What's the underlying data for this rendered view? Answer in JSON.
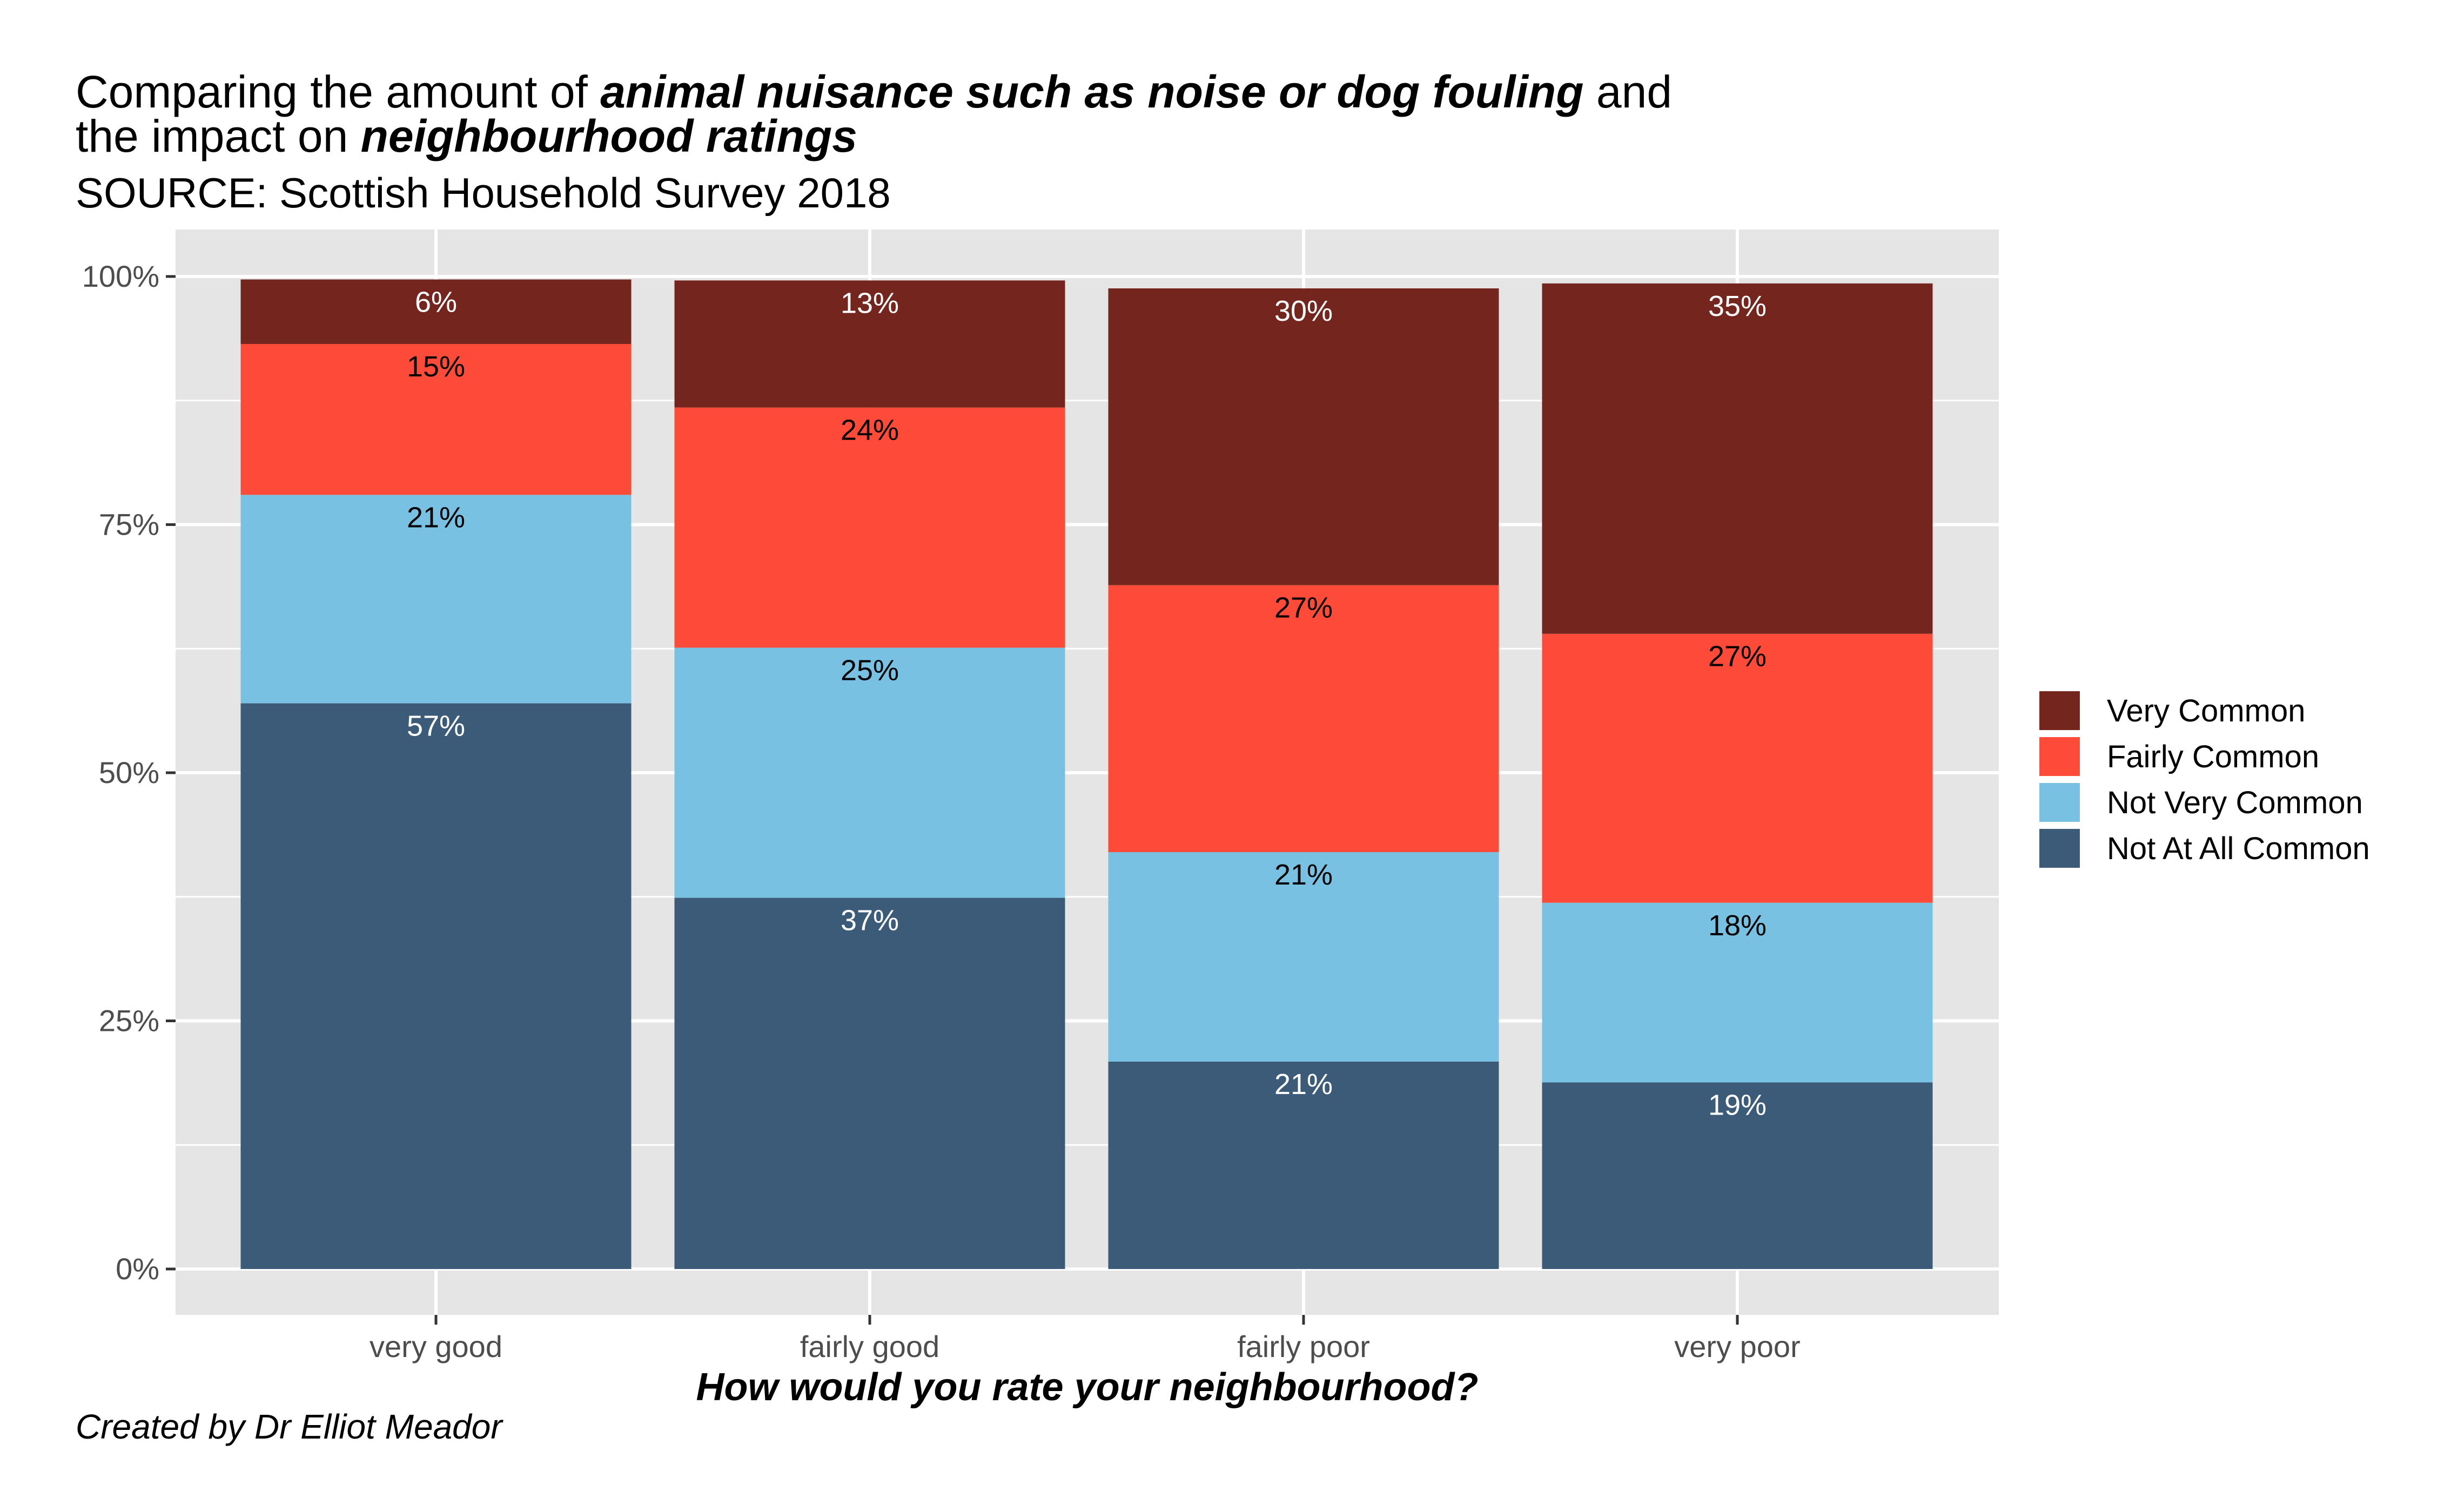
{
  "title_parts": {
    "line1_prefix": "Comparing the amount of ",
    "line1_emphasis": "animal nuisance such as noise or dog fouling",
    "line1_suffix": " and",
    "line2_prefix": "the impact on ",
    "line2_emphasis": "neighbourhood ratings"
  },
  "subtitle": "SOURCE: Scottish Household Survey 2018",
  "caption": "Created by Dr Elliot Meador",
  "colors": {
    "panel_background": "#e5e5e5",
    "grid": "#ffffff",
    "Very Common": "#74261e",
    "Fairly Common": "#fe4b39",
    "Not Very Common": "#78c1e3",
    "Not At All Common": "#3c5b78"
  },
  "chart_data": {
    "type": "bar",
    "stacked": true,
    "categories": [
      "very good",
      "fairly good",
      "fairly poor",
      "very poor"
    ],
    "series": [
      {
        "name": "Not At All Common",
        "values": [
          57,
          37.4,
          20.9,
          18.8
        ],
        "labels": [
          "57%",
          "37%",
          "21%",
          "19%"
        ],
        "label_color": "#ffffff"
      },
      {
        "name": "Not Very Common",
        "values": [
          21,
          25.2,
          21.1,
          18.1
        ],
        "labels": [
          "21%",
          "25%",
          "21%",
          "18%"
        ],
        "label_color": "#000000"
      },
      {
        "name": "Fairly Common",
        "values": [
          15.2,
          24.2,
          26.9,
          27.1
        ],
        "labels": [
          "15%",
          "24%",
          "27%",
          "27%"
        ],
        "label_color": "#000000"
      },
      {
        "name": "Very Common",
        "values": [
          6.5,
          12.8,
          29.9,
          35.3
        ],
        "labels": [
          "6%",
          "13%",
          "30%",
          "35%"
        ],
        "label_color": "#ffffff"
      }
    ],
    "legend_order": [
      "Very Common",
      "Fairly Common",
      "Not Very Common",
      "Not At All Common"
    ],
    "xlabel": "How would you rate your neighbourhood?",
    "ylabel": "",
    "ylim": [
      0,
      100
    ],
    "yticks": [
      0,
      25,
      50,
      75,
      100
    ],
    "ytick_labels": [
      "0%",
      "25%",
      "50%",
      "75%",
      "100%"
    ],
    "grid": true,
    "legend_position": "right"
  }
}
